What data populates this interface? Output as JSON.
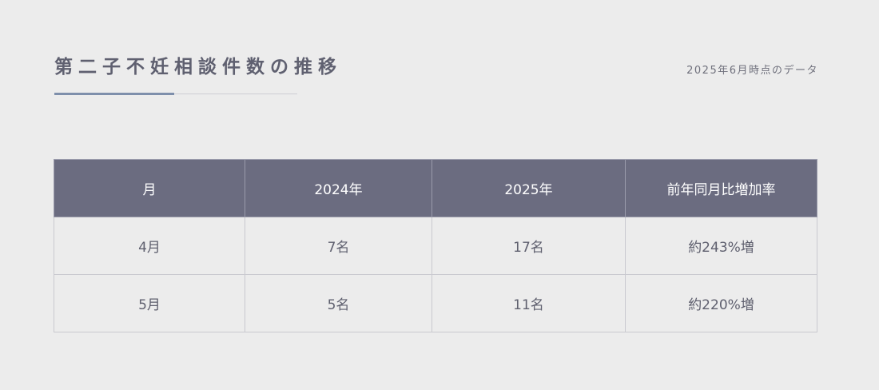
{
  "header": {
    "title": "第二子不妊相談件数の推移",
    "as_of": "2025年6月時点のデータ"
  },
  "colors": {
    "header_bg": "#6b6c80",
    "accent": "#7e8fab",
    "background": "#ececec"
  },
  "table": {
    "columns": [
      "月",
      "2024年",
      "2025年",
      "前年同月比増加率"
    ],
    "rows": [
      [
        "4月",
        "7名",
        "17名",
        "約243%増"
      ],
      [
        "5月",
        "5名",
        "11名",
        "約220%増"
      ]
    ]
  }
}
